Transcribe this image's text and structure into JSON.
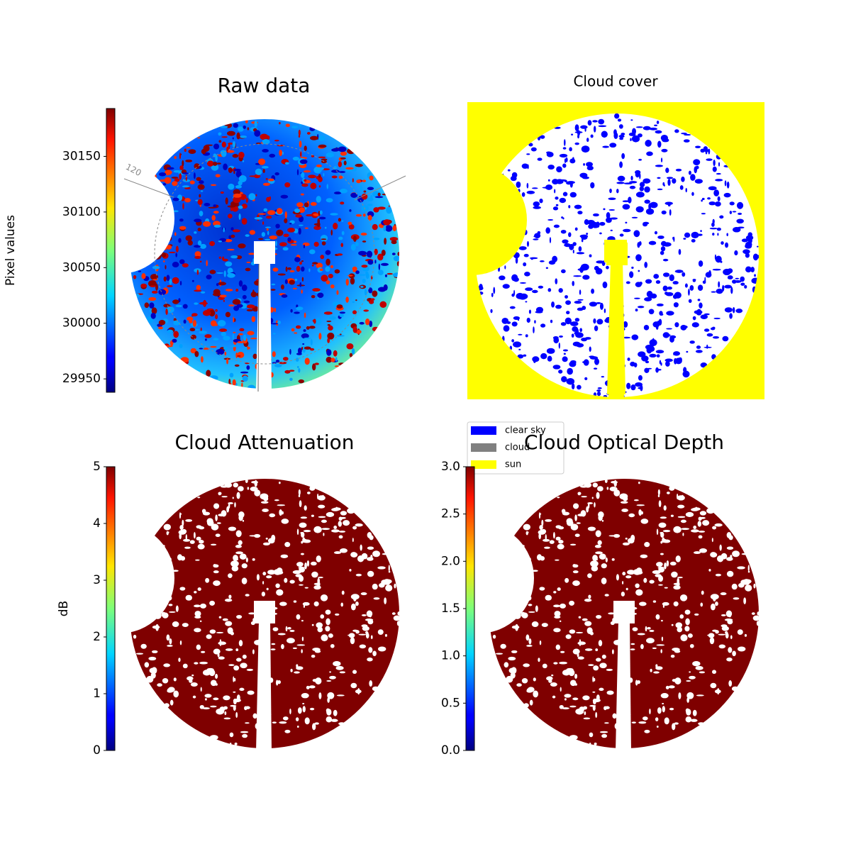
{
  "chart_data": [
    {
      "type": "image",
      "title": "Raw data",
      "colormap": "jet",
      "colorbar_label": "Pixel values",
      "clim": [
        29938,
        30193
      ],
      "cticks": [
        29950,
        30000,
        30050,
        30100,
        30150
      ],
      "annotations": [
        "120"
      ]
    },
    {
      "type": "categorical-image",
      "title": "Cloud cover",
      "series": [
        {
          "name": "clear sky",
          "color": "#0000ff"
        },
        {
          "name": "cloud",
          "color": "#808080"
        },
        {
          "name": "sun",
          "color": "#ffff00"
        }
      ]
    },
    {
      "type": "image",
      "title": "Cloud Attenuation",
      "colormap": "jet",
      "colorbar_label": "dB",
      "clim": [
        0,
        5
      ],
      "cticks": [
        0,
        1,
        2,
        3,
        4,
        5
      ]
    },
    {
      "type": "image",
      "title": "Cloud Optical Depth",
      "colormap": "jet",
      "clim": [
        0,
        3
      ],
      "cticks": [
        {
          "value": 0,
          "label": "0.0"
        },
        0.5,
        {
          "value": 1,
          "label": "1.0"
        },
        1.5,
        {
          "value": 2,
          "label": "2.0"
        },
        2.5,
        {
          "value": 3,
          "label": "3.0"
        }
      ]
    }
  ]
}
